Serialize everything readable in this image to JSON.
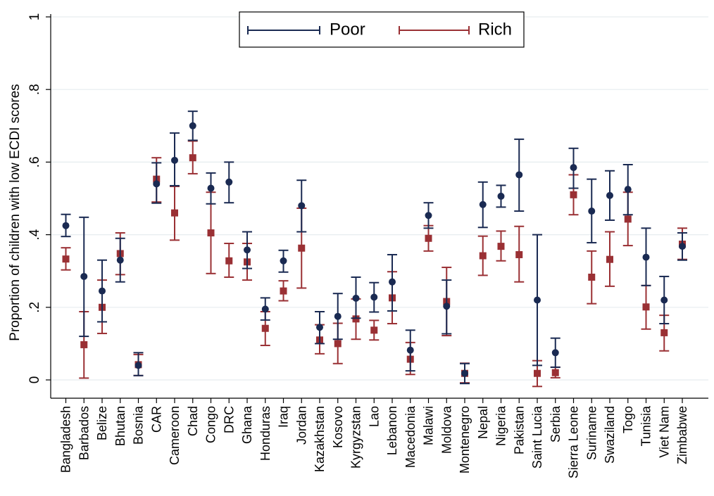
{
  "chart_data": {
    "type": "scatter",
    "title": "",
    "ylabel": "Proportion of children with low ECDI scores",
    "xlabel": "",
    "ylim": [
      0,
      1
    ],
    "yticks": [
      0,
      0.2,
      0.4,
      0.6,
      0.8,
      1
    ],
    "ytick_labels": [
      "0",
      ".2",
      ".4",
      ".6",
      ".8",
      "1"
    ],
    "grid": true,
    "legend_position": "top-center",
    "categories": [
      "Bangladesh",
      "Barbados",
      "Belize",
      "Bhutan",
      "Bosnia",
      "CAR",
      "Cameroon",
      "Chad",
      "Congo",
      "DRC",
      "Ghana",
      "Honduras",
      "Iraq",
      "Jordan",
      "Kazakhstan",
      "Kosovo",
      "Kyrgyzstan",
      "Lao",
      "Lebanon",
      "Macedonia",
      "Malawi",
      "Moldova",
      "Montenegro",
      "Nepal",
      "Nigeria",
      "Pakistan",
      "Saint Lucia",
      "Serbia",
      "Sierra Leone",
      "Suriname",
      "Swaziland",
      "Togo",
      "Tunisia",
      "Viet Nam",
      "Zimbabwe"
    ],
    "series": [
      {
        "name": "Poor",
        "color": "#1a2a52",
        "marker": "circle",
        "values": [
          0.425,
          0.285,
          0.245,
          0.33,
          0.04,
          0.54,
          0.605,
          0.7,
          0.528,
          0.545,
          0.358,
          0.195,
          0.328,
          0.48,
          0.145,
          0.175,
          0.225,
          0.228,
          0.27,
          0.082,
          0.453,
          0.203,
          0.018,
          0.483,
          0.506,
          0.565,
          0.22,
          0.075,
          0.585,
          0.465,
          0.508,
          0.525,
          0.338,
          0.22,
          0.368
        ],
        "lower": [
          0.395,
          0.12,
          0.16,
          0.27,
          0.012,
          0.487,
          0.535,
          0.66,
          0.485,
          0.488,
          0.307,
          0.165,
          0.297,
          0.408,
          0.1,
          0.112,
          0.17,
          0.187,
          0.19,
          0.025,
          0.418,
          0.127,
          -0.01,
          0.42,
          0.476,
          0.465,
          0.04,
          0.035,
          0.528,
          0.378,
          0.44,
          0.455,
          0.26,
          0.155,
          0.33
        ],
        "upper": [
          0.456,
          0.448,
          0.33,
          0.39,
          0.075,
          0.598,
          0.68,
          0.74,
          0.57,
          0.6,
          0.408,
          0.226,
          0.357,
          0.55,
          0.188,
          0.238,
          0.283,
          0.268,
          0.345,
          0.137,
          0.488,
          0.275,
          0.045,
          0.545,
          0.536,
          0.663,
          0.4,
          0.115,
          0.638,
          0.553,
          0.576,
          0.593,
          0.418,
          0.285,
          0.405
        ]
      },
      {
        "name": "Rich",
        "color": "#9a3034",
        "marker": "square",
        "values": [
          0.333,
          0.097,
          0.2,
          0.348,
          0.042,
          0.553,
          0.46,
          0.612,
          0.405,
          0.328,
          0.325,
          0.142,
          0.245,
          0.363,
          0.11,
          0.1,
          0.168,
          0.137,
          0.226,
          0.057,
          0.39,
          0.216,
          0.018,
          0.342,
          0.368,
          0.345,
          0.018,
          0.02,
          0.51,
          0.283,
          0.332,
          0.443,
          0.201,
          0.13,
          0.374
        ],
        "lower": [
          0.303,
          0.005,
          0.128,
          0.29,
          0.012,
          0.49,
          0.385,
          0.568,
          0.293,
          0.283,
          0.275,
          0.095,
          0.218,
          0.253,
          0.072,
          0.045,
          0.112,
          0.11,
          0.155,
          0.015,
          0.355,
          0.122,
          -0.008,
          0.288,
          0.328,
          0.27,
          -0.018,
          0.006,
          0.455,
          0.21,
          0.258,
          0.37,
          0.14,
          0.08,
          0.332
        ],
        "upper": [
          0.364,
          0.188,
          0.275,
          0.405,
          0.07,
          0.612,
          0.533,
          0.658,
          0.517,
          0.376,
          0.376,
          0.188,
          0.273,
          0.473,
          0.152,
          0.156,
          0.223,
          0.164,
          0.298,
          0.103,
          0.425,
          0.31,
          0.046,
          0.396,
          0.41,
          0.423,
          0.053,
          0.035,
          0.565,
          0.355,
          0.408,
          0.517,
          0.26,
          0.178,
          0.418
        ]
      }
    ]
  }
}
